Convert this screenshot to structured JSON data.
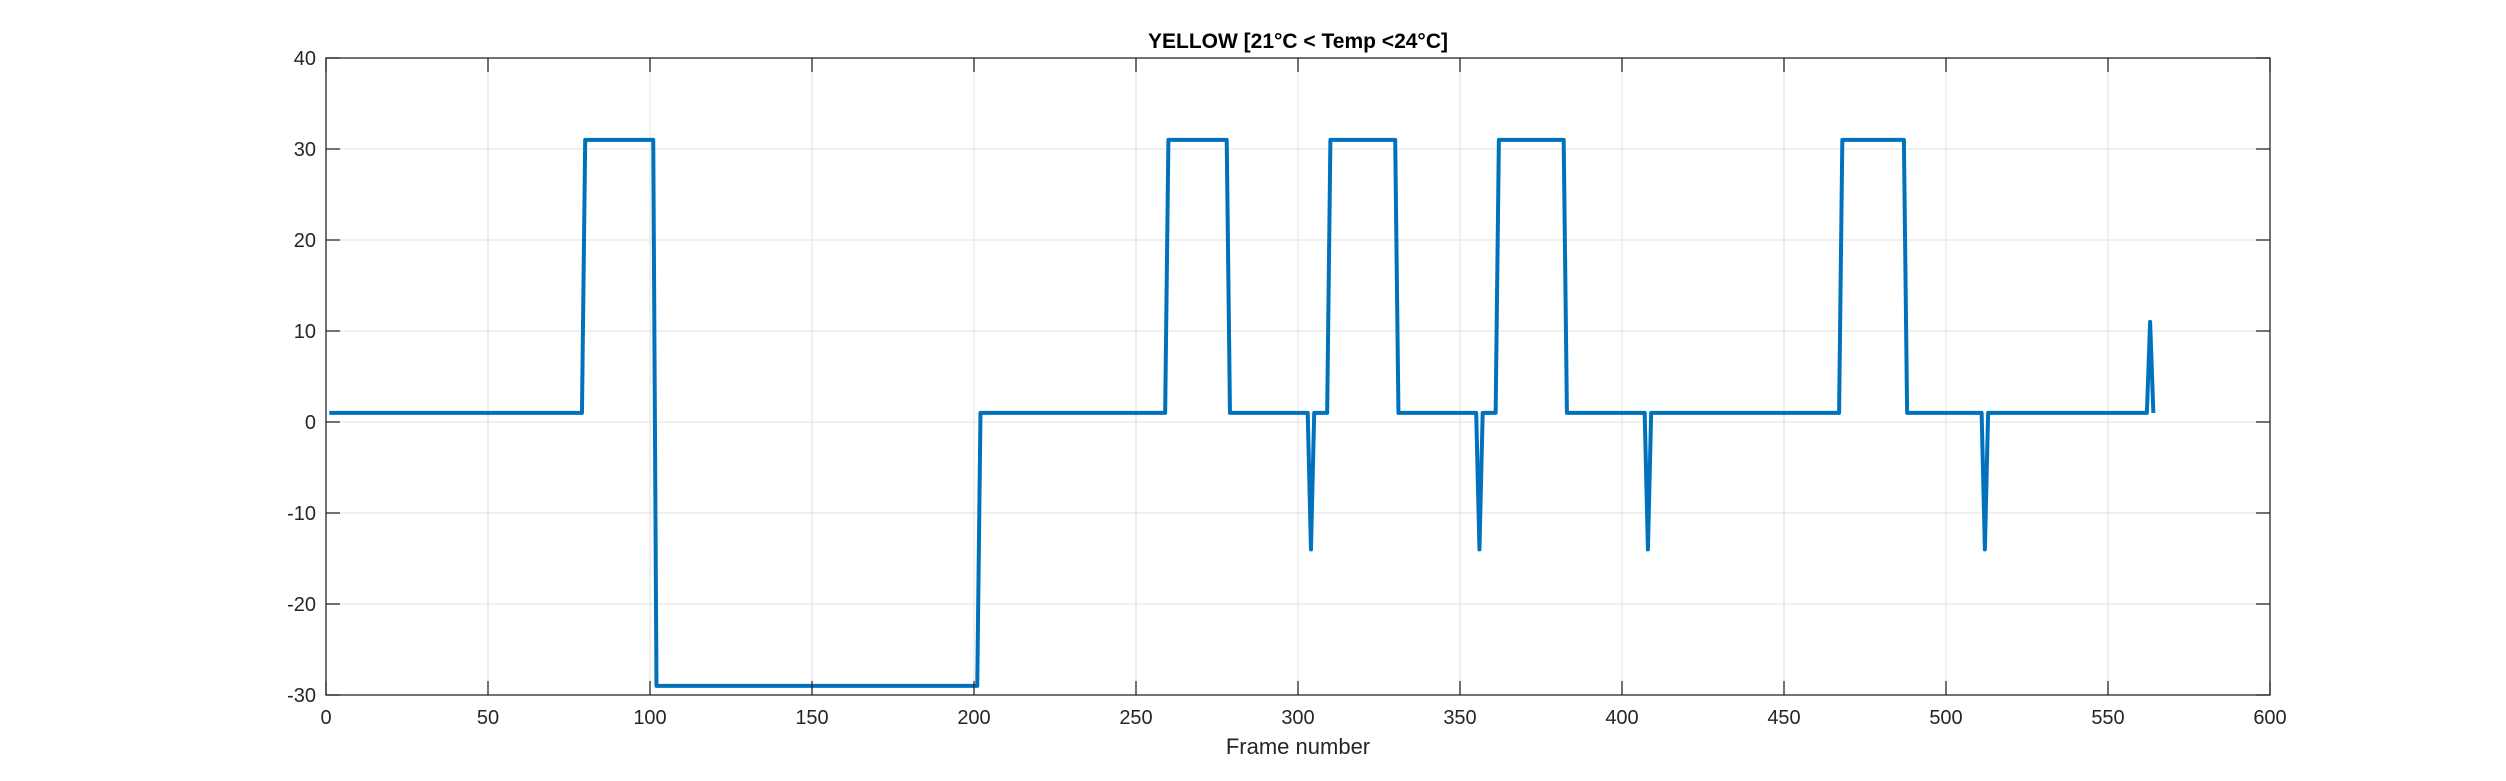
{
  "chart_data": {
    "type": "line",
    "title": "YELLOW [21°C < Temp <24°C]",
    "xlabel": "Frame number",
    "ylabel": "",
    "xlim": [
      0,
      600
    ],
    "ylim": [
      -30,
      40
    ],
    "xticks": [
      0,
      50,
      100,
      150,
      200,
      250,
      300,
      350,
      400,
      450,
      500,
      550,
      600
    ],
    "yticks": [
      -30,
      -20,
      -10,
      0,
      10,
      20,
      30,
      40
    ],
    "grid": true,
    "series": [
      {
        "color": "#0072bd",
        "x": [
          1,
          79,
          80,
          101,
          102,
          201,
          202,
          259,
          260,
          278,
          279,
          303,
          304,
          305,
          309,
          310,
          330,
          331,
          355,
          356,
          357,
          361,
          362,
          382,
          383,
          407,
          408,
          409,
          467,
          468,
          487,
          488,
          511,
          512,
          513,
          562,
          563,
          564
        ],
        "y": [
          1,
          1,
          31,
          31,
          -29,
          -29,
          1,
          1,
          31,
          31,
          1,
          1,
          -14,
          1,
          1,
          31,
          31,
          1,
          1,
          -14,
          1,
          1,
          31,
          31,
          1,
          1,
          -14,
          1,
          1,
          31,
          31,
          1,
          1,
          -14,
          1,
          1,
          11,
          1
        ]
      }
    ]
  }
}
